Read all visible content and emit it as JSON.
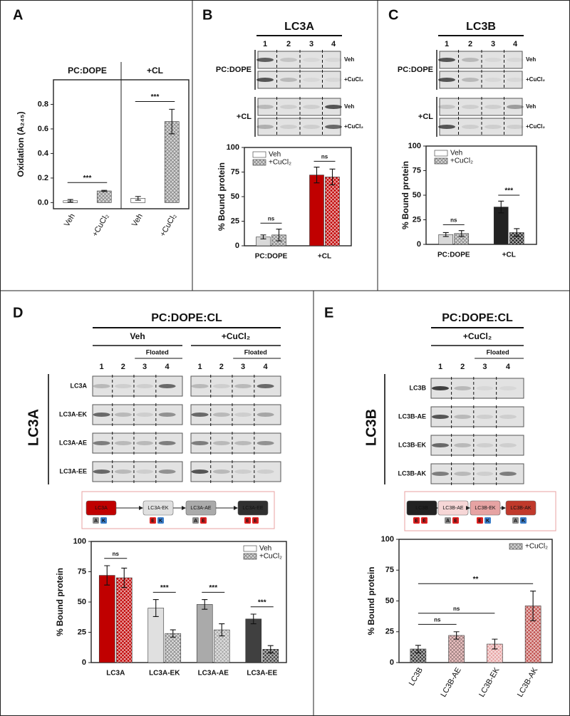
{
  "panels": [
    "A",
    "B",
    "C",
    "D",
    "E"
  ],
  "blots": {
    "B": {
      "title": "LC3A",
      "lanes": [
        "1",
        "2",
        "3",
        "4"
      ],
      "groups": [
        {
          "label": "PC:DOPE",
          "rows": [
            "Veh",
            "+CuCl₂"
          ]
        },
        {
          "label": "+CL",
          "rows": [
            "Veh",
            "+CuCl₂"
          ]
        }
      ]
    },
    "C": {
      "title": "LC3B",
      "lanes": [
        "1",
        "2",
        "3",
        "4"
      ],
      "groups": [
        {
          "label": "PC:DOPE",
          "rows": [
            "Veh",
            "+CuCl₂"
          ]
        },
        {
          "label": "+CL",
          "rows": [
            "Veh",
            "+CuCl₂"
          ]
        }
      ]
    },
    "D": {
      "title": "PC:DOPE:CL",
      "side": "LC3A",
      "conditions": [
        "Veh",
        "+CuCl₂"
      ],
      "floated": "Floated",
      "lanes": [
        "1",
        "2",
        "3",
        "4"
      ],
      "rows": [
        "LC3A",
        "LC3A-EK",
        "LC3A-AE",
        "LC3A-EE"
      ]
    },
    "E": {
      "title": "PC:DOPE:CL",
      "side": "LC3B",
      "conditions": [
        "+CuCl₂"
      ],
      "floated": "Floated",
      "lanes": [
        "1",
        "2",
        "3",
        "4"
      ],
      "rows": [
        "LC3B",
        "LC3B-AE",
        "LC3B-EK",
        "LC3B-AK"
      ]
    }
  },
  "schemes": {
    "D": [
      {
        "name": "LC3A",
        "color": "#c00000",
        "tags": [
          "A",
          "K"
        ]
      },
      {
        "name": "LC3A-EK",
        "color": "#e0e0e0",
        "tags": [
          "E",
          "K"
        ]
      },
      {
        "name": "LC3A-AE",
        "color": "#aaaaaa",
        "tags": [
          "A",
          "E"
        ]
      },
      {
        "name": "LC3A-EE",
        "color": "#303030",
        "tags": [
          "E",
          "E"
        ]
      }
    ],
    "E": [
      {
        "name": "LC3B",
        "color": "#222222",
        "tags": [
          "E",
          "E"
        ]
      },
      {
        "name": "LC3B-AE",
        "color": "#f6d6d6",
        "tags": [
          "A",
          "E"
        ]
      },
      {
        "name": "LC3B-EK",
        "color": "#e6a3a3",
        "tags": [
          "E",
          "K"
        ]
      },
      {
        "name": "LC3B-AK",
        "color": "#c0392b",
        "tags": [
          "A",
          "K"
        ]
      }
    ]
  },
  "chart_data": [
    {
      "type": "bar",
      "groups": [
        "PC:DOPE",
        "+CL"
      ],
      "categories": [
        "Veh",
        "+CuCl₂",
        "Veh",
        "+CuCl₂"
      ],
      "ylabel": "Oxidation (A₂₄₅)",
      "ylim": [
        -0.05,
        1.0
      ],
      "yticks": [
        {
          "value": 0,
          "label": "0.0"
        },
        0.2,
        0.4,
        0.6,
        0.8
      ],
      "series": [
        {
          "values": [
            0.015,
            0.095,
            0.035,
            0.66
          ],
          "errors": [
            0.01,
            0.005,
            0.015,
            0.1
          ],
          "colors": [
            "#ffffff",
            "#d9d9d9",
            "#ffffff",
            "#d9d9d9"
          ],
          "hatched": [
            false,
            true,
            false,
            true
          ]
        }
      ],
      "annotations": [
        {
          "label": "***",
          "group": "PC:DOPE"
        },
        {
          "label": "***",
          "group": "+CL"
        }
      ]
    },
    {
      "type": "bar",
      "categories": [
        "PC:DOPE",
        "+CL"
      ],
      "ylabel": "% Bound protein",
      "ylim": [
        0,
        100
      ],
      "yticks": [
        0,
        25,
        50,
        75,
        100
      ],
      "legend": "upper left",
      "series": [
        {
          "name": "Veh",
          "legend_color": "#ffffff",
          "values": [
            9,
            72
          ],
          "errors": [
            2,
            8
          ],
          "colors": [
            "#d9d9d9",
            "#c00000"
          ],
          "hatched": [
            false,
            false
          ]
        },
        {
          "name": "+CuCl₂",
          "legend_color": "#d9d9d9",
          "values": [
            11,
            70
          ],
          "errors": [
            6,
            8
          ],
          "colors": [
            "#d9d9d9",
            "#c00000"
          ],
          "hatched": [
            true,
            true
          ]
        }
      ],
      "annotations": [
        {
          "label": "ns",
          "category": "PC:DOPE"
        },
        {
          "label": "ns",
          "category": "+CL"
        }
      ]
    },
    {
      "type": "bar",
      "categories": [
        "PC:DOPE",
        "+CL"
      ],
      "ylabel": "% Bound protein",
      "ylim": [
        0,
        100
      ],
      "yticks": [
        0,
        25,
        50,
        75,
        100
      ],
      "legend": "upper left",
      "series": [
        {
          "name": "Veh",
          "legend_color": "#ffffff",
          "values": [
            10,
            38
          ],
          "errors": [
            2,
            6
          ],
          "colors": [
            "#d9d9d9",
            "#222222"
          ],
          "hatched": [
            false,
            false
          ]
        },
        {
          "name": "+CuCl₂",
          "legend_color": "#d9d9d9",
          "values": [
            11,
            12
          ],
          "errors": [
            3,
            4
          ],
          "colors": [
            "#d9d9d9",
            "#222222"
          ],
          "hatched": [
            true,
            true
          ]
        }
      ],
      "annotations": [
        {
          "label": "ns",
          "category": "PC:DOPE"
        },
        {
          "label": "***",
          "category": "+CL"
        }
      ]
    },
    {
      "type": "bar",
      "categories": [
        "LC3A",
        "LC3A-EK",
        "LC3A-AE",
        "LC3A-EE"
      ],
      "ylabel": "% Bound protein",
      "ylim": [
        0,
        100
      ],
      "yticks": [
        0,
        25,
        50,
        75,
        100
      ],
      "legend": "upper right",
      "series": [
        {
          "name": "Veh",
          "legend_color": "#ffffff",
          "values": [
            72,
            45,
            48,
            36
          ],
          "errors": [
            8,
            7,
            4,
            4
          ],
          "colors": [
            "#c00000",
            "#e0e0e0",
            "#aaaaaa",
            "#404040"
          ],
          "hatched": [
            false,
            false,
            false,
            false
          ]
        },
        {
          "name": "+CuCl₂",
          "legend_color": "#d9d9d9",
          "values": [
            70,
            24,
            27,
            11
          ],
          "errors": [
            8,
            3,
            5,
            3
          ],
          "colors": [
            "#c00000",
            "#e0e0e0",
            "#aaaaaa",
            "#404040"
          ],
          "hatched": [
            true,
            true,
            true,
            true
          ]
        }
      ],
      "annotations": [
        {
          "label": "ns",
          "category": "LC3A"
        },
        {
          "label": "***",
          "category": "LC3A-EK"
        },
        {
          "label": "***",
          "category": "LC3A-AE"
        },
        {
          "label": "***",
          "category": "LC3A-EE"
        }
      ]
    },
    {
      "type": "bar",
      "categories": [
        "LC3B",
        "LC3B-AE",
        "LC3B-EK",
        "LC3B-AK"
      ],
      "ylabel": "% Bound protein",
      "ylim": [
        0,
        100
      ],
      "yticks": [
        0,
        25,
        50,
        75,
        100
      ],
      "legend": "upper right",
      "series": [
        {
          "name": "+CuCl₂",
          "legend_color": "#d9d9d9",
          "values": [
            11,
            22,
            15,
            46
          ],
          "errors": [
            3,
            3,
            4,
            12
          ],
          "colors": [
            "#333333",
            "#f2c6c6",
            "#e6a3a3",
            "#c0504d"
          ],
          "hatched": [
            true,
            true,
            true,
            true
          ]
        }
      ],
      "annotations": [
        {
          "label": "ns",
          "between": [
            "LC3B",
            "LC3B-AE"
          ]
        },
        {
          "label": "ns",
          "between": [
            "LC3B",
            "LC3B-EK"
          ]
        },
        {
          "label": "**",
          "between": [
            "LC3B",
            "LC3B-AK"
          ]
        }
      ]
    }
  ]
}
